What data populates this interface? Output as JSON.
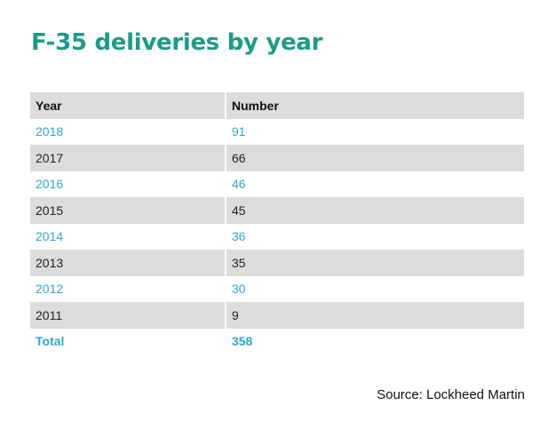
{
  "title": "F-35 deliveries by year",
  "source": "Source: Lockheed Martin",
  "colors": {
    "title": "#1a9c89",
    "accent_text": "#2fa8c9",
    "stripe": "#dcdcdc"
  },
  "chart_data": {
    "type": "table",
    "title": "F-35 deliveries by year",
    "columns": [
      "Year",
      "Number"
    ],
    "rows": [
      [
        "2018",
        "91"
      ],
      [
        "2017",
        "66"
      ],
      [
        "2016",
        "46"
      ],
      [
        "2015",
        "45"
      ],
      [
        "2014",
        "36"
      ],
      [
        "2013",
        "35"
      ],
      [
        "2012",
        "30"
      ],
      [
        "2011",
        "9"
      ]
    ],
    "total": [
      "Total",
      "358"
    ]
  }
}
